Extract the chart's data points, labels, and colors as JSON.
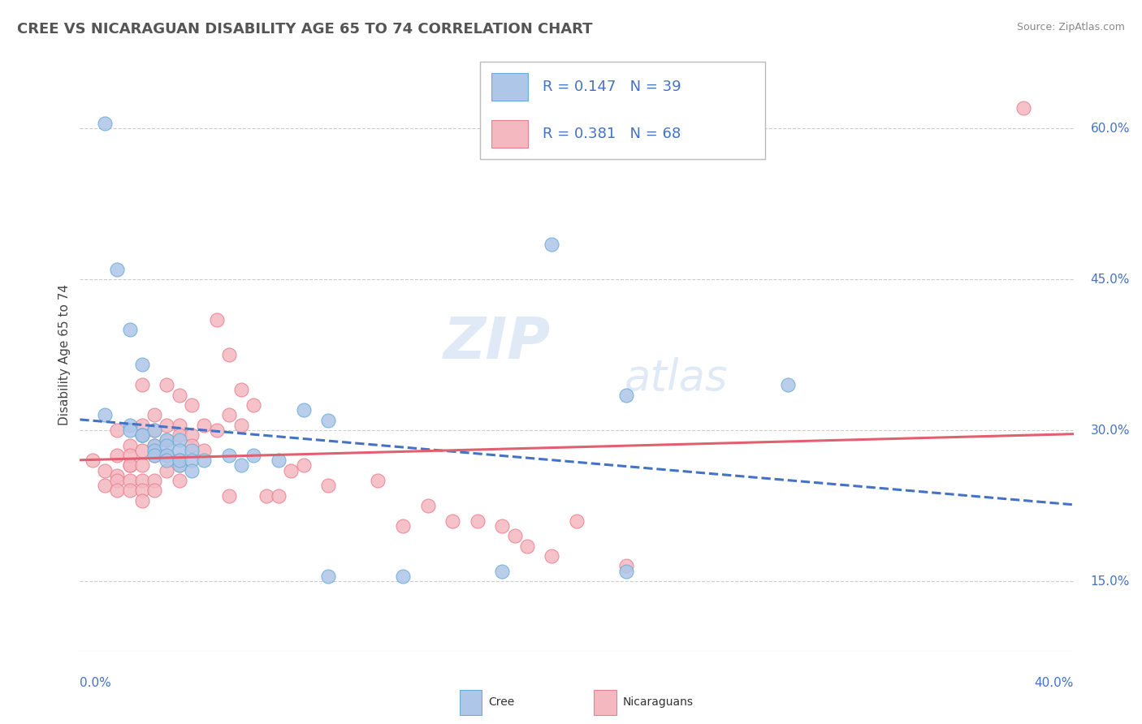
{
  "title": "CREE VS NICARAGUAN DISABILITY AGE 65 TO 74 CORRELATION CHART",
  "source": "Source: ZipAtlas.com",
  "ylabel": "Disability Age 65 to 74",
  "ytick_vals": [
    0.15,
    0.3,
    0.45,
    0.6
  ],
  "xmin": 0.0,
  "xmax": 0.4,
  "ymin": 0.08,
  "ymax": 0.67,
  "cree_color": "#aec6e8",
  "cree_edge": "#6aaed6",
  "nicaraguan_color": "#f4b8c1",
  "nicaraguan_edge": "#e8818f",
  "cree_line_color": "#4472c4",
  "nicaraguan_line_color": "#e06070",
  "cree_R": 0.147,
  "cree_N": 39,
  "nicaraguan_R": 0.381,
  "nicaraguan_N": 68,
  "legend_color": "#4472c4",
  "cree_points": [
    [
      0.01,
      0.605
    ],
    [
      0.015,
      0.46
    ],
    [
      0.02,
      0.4
    ],
    [
      0.025,
      0.365
    ],
    [
      0.01,
      0.315
    ],
    [
      0.02,
      0.305
    ],
    [
      0.02,
      0.3
    ],
    [
      0.025,
      0.295
    ],
    [
      0.03,
      0.3
    ],
    [
      0.025,
      0.295
    ],
    [
      0.03,
      0.285
    ],
    [
      0.03,
      0.28
    ],
    [
      0.03,
      0.275
    ],
    [
      0.035,
      0.29
    ],
    [
      0.035,
      0.285
    ],
    [
      0.04,
      0.29
    ],
    [
      0.04,
      0.28
    ],
    [
      0.035,
      0.275
    ],
    [
      0.04,
      0.27
    ],
    [
      0.035,
      0.27
    ],
    [
      0.04,
      0.265
    ],
    [
      0.04,
      0.27
    ],
    [
      0.045,
      0.28
    ],
    [
      0.045,
      0.27
    ],
    [
      0.05,
      0.27
    ],
    [
      0.045,
      0.26
    ],
    [
      0.06,
      0.275
    ],
    [
      0.065,
      0.265
    ],
    [
      0.07,
      0.275
    ],
    [
      0.08,
      0.27
    ],
    [
      0.09,
      0.32
    ],
    [
      0.1,
      0.31
    ],
    [
      0.1,
      0.155
    ],
    [
      0.13,
      0.155
    ],
    [
      0.17,
      0.16
    ],
    [
      0.19,
      0.485
    ],
    [
      0.22,
      0.335
    ],
    [
      0.22,
      0.16
    ],
    [
      0.285,
      0.345
    ]
  ],
  "nicaraguan_points": [
    [
      0.005,
      0.27
    ],
    [
      0.01,
      0.26
    ],
    [
      0.015,
      0.255
    ],
    [
      0.01,
      0.245
    ],
    [
      0.015,
      0.3
    ],
    [
      0.015,
      0.275
    ],
    [
      0.02,
      0.265
    ],
    [
      0.015,
      0.25
    ],
    [
      0.015,
      0.24
    ],
    [
      0.02,
      0.285
    ],
    [
      0.02,
      0.275
    ],
    [
      0.02,
      0.265
    ],
    [
      0.02,
      0.25
    ],
    [
      0.02,
      0.24
    ],
    [
      0.025,
      0.345
    ],
    [
      0.025,
      0.305
    ],
    [
      0.025,
      0.295
    ],
    [
      0.025,
      0.28
    ],
    [
      0.025,
      0.265
    ],
    [
      0.025,
      0.25
    ],
    [
      0.025,
      0.24
    ],
    [
      0.025,
      0.23
    ],
    [
      0.03,
      0.315
    ],
    [
      0.03,
      0.3
    ],
    [
      0.03,
      0.285
    ],
    [
      0.03,
      0.275
    ],
    [
      0.03,
      0.25
    ],
    [
      0.03,
      0.24
    ],
    [
      0.035,
      0.345
    ],
    [
      0.035,
      0.305
    ],
    [
      0.035,
      0.29
    ],
    [
      0.035,
      0.275
    ],
    [
      0.035,
      0.26
    ],
    [
      0.04,
      0.335
    ],
    [
      0.04,
      0.305
    ],
    [
      0.04,
      0.295
    ],
    [
      0.04,
      0.265
    ],
    [
      0.04,
      0.25
    ],
    [
      0.045,
      0.325
    ],
    [
      0.045,
      0.295
    ],
    [
      0.045,
      0.285
    ],
    [
      0.05,
      0.305
    ],
    [
      0.05,
      0.28
    ],
    [
      0.055,
      0.41
    ],
    [
      0.055,
      0.3
    ],
    [
      0.06,
      0.375
    ],
    [
      0.06,
      0.315
    ],
    [
      0.06,
      0.235
    ],
    [
      0.065,
      0.34
    ],
    [
      0.065,
      0.305
    ],
    [
      0.07,
      0.325
    ],
    [
      0.075,
      0.235
    ],
    [
      0.08,
      0.235
    ],
    [
      0.085,
      0.26
    ],
    [
      0.09,
      0.265
    ],
    [
      0.1,
      0.245
    ],
    [
      0.12,
      0.25
    ],
    [
      0.13,
      0.205
    ],
    [
      0.14,
      0.225
    ],
    [
      0.15,
      0.21
    ],
    [
      0.16,
      0.21
    ],
    [
      0.17,
      0.205
    ],
    [
      0.175,
      0.195
    ],
    [
      0.18,
      0.185
    ],
    [
      0.19,
      0.175
    ],
    [
      0.2,
      0.21
    ],
    [
      0.22,
      0.165
    ],
    [
      0.38,
      0.62
    ]
  ]
}
